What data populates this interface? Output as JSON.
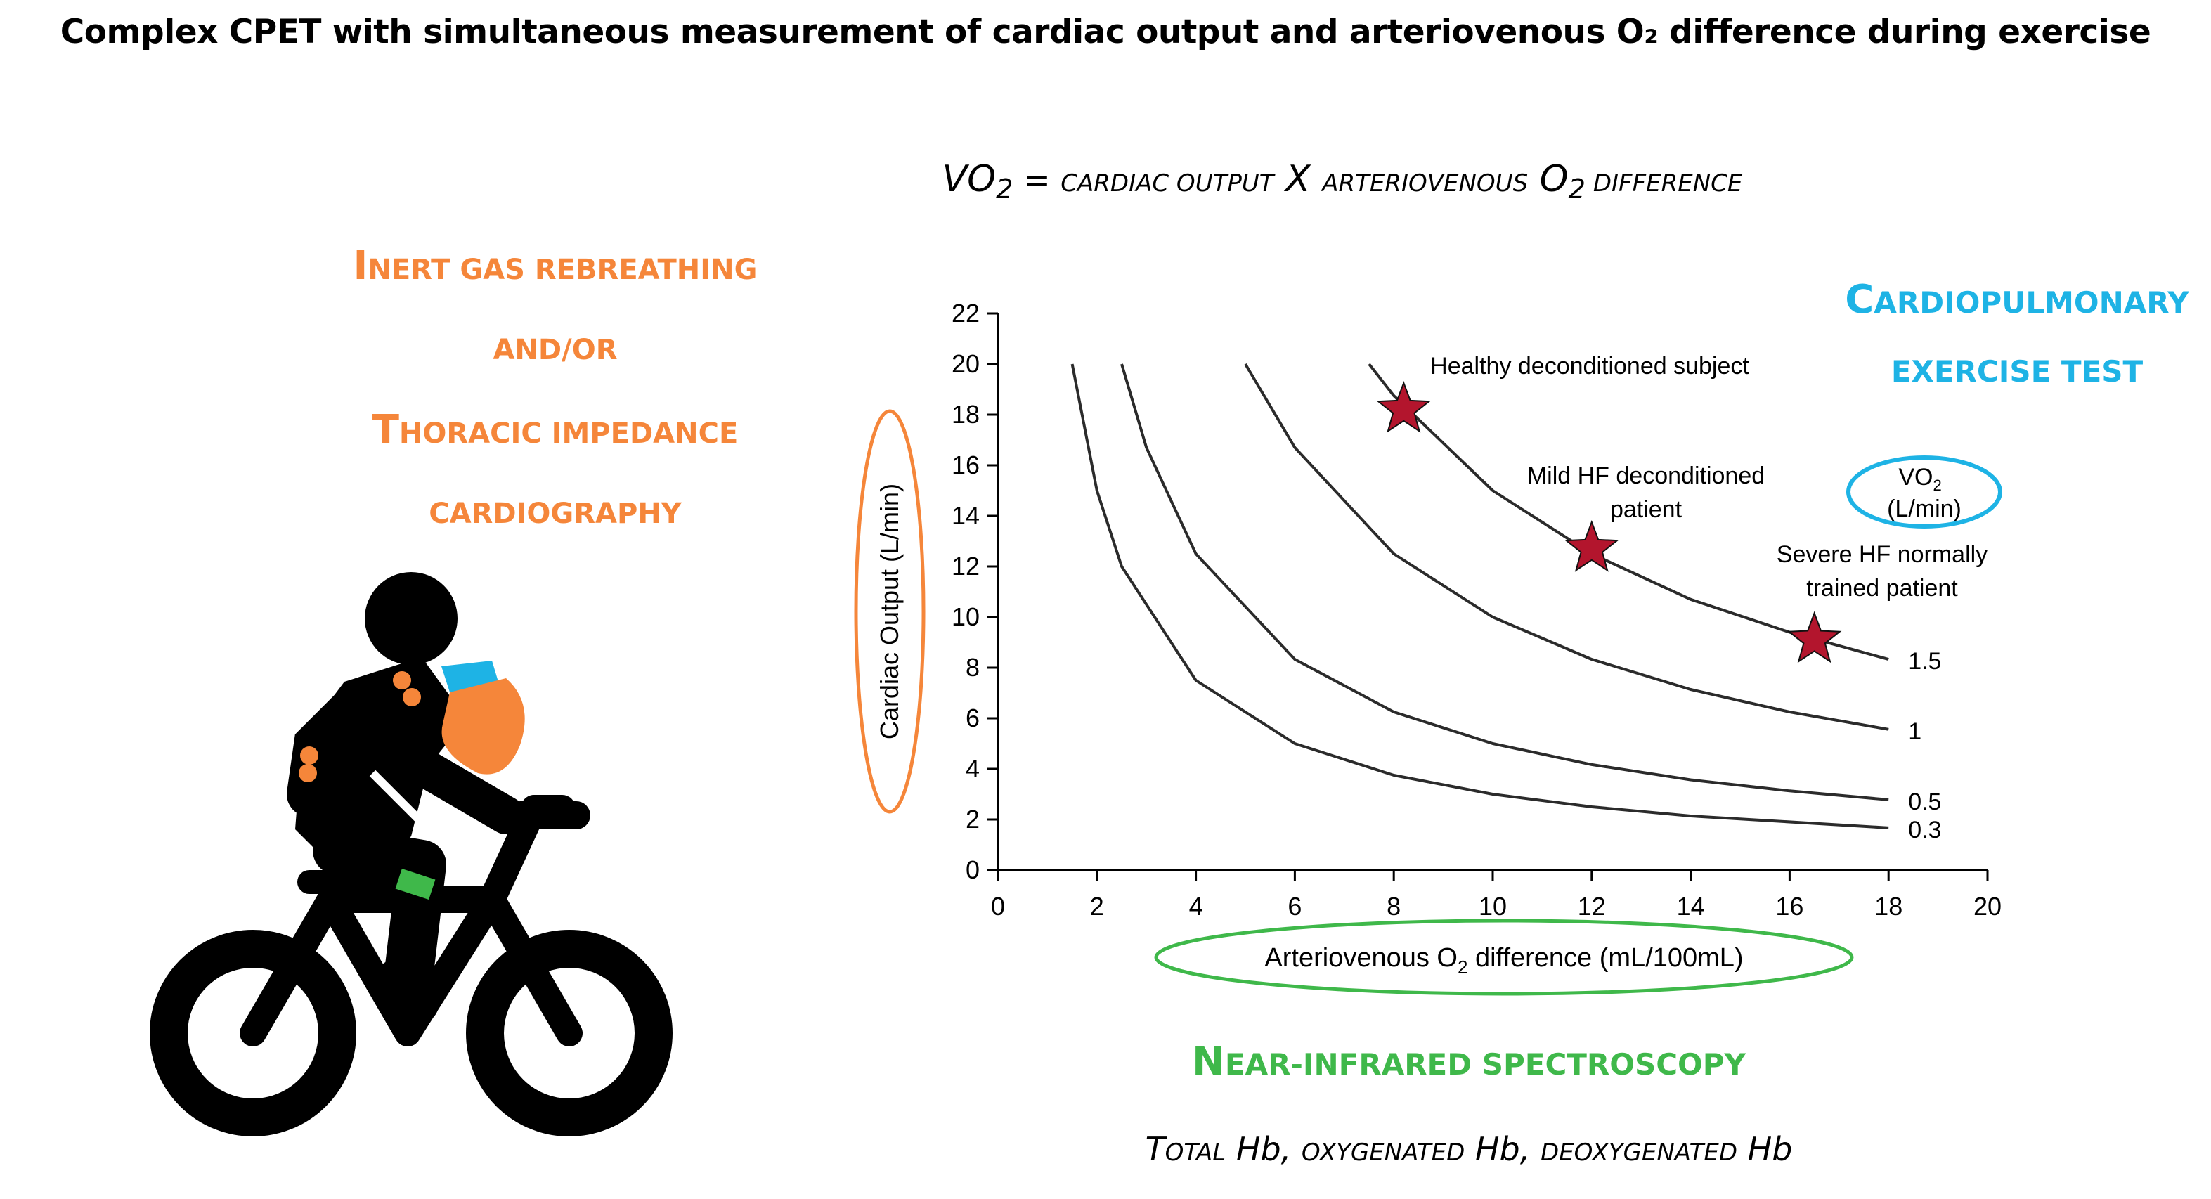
{
  "title": "Complex CPET with simultaneous measurement of cardiac output and arteriovenous O₂ difference during exercise",
  "formula": {
    "vo2": "VO",
    "vo2_sub": "2",
    "eq": " = ",
    "cardiac_output": "cardiac output",
    "times": " X ",
    "av_diff": "arteriovenous",
    "o2": " O",
    "o2_sub": "2",
    "difference": " difference"
  },
  "left_methods": {
    "line1_cap": "I",
    "line1_rest": "nert gas rebreathing",
    "line2": "and/or",
    "line3_cap": "T",
    "line3_rest": "horacic impedance",
    "line4": "cardiography"
  },
  "cpet_label": {
    "line1_cap": "C",
    "line1_rest": "ardiopulmonary",
    "line2": "exercise test"
  },
  "nirs_label": {
    "cap": "N",
    "rest": "ear-infrared spectroscopy"
  },
  "hb_label": {
    "t_cap": "T",
    "t_rest": "otal",
    "hb1": " Hb, ",
    "oxy": "oxygenated",
    "hb2": " Hb, ",
    "deoxy": "deoxygenated",
    "hb3": " Hb"
  },
  "chart_data": {
    "type": "line",
    "title": "",
    "xlabel": "Arteriovenous O2 difference (mL/100mL)",
    "xlabel_main": "Arteriovenous O",
    "xlabel_sub": "2",
    "xlabel_rest": " difference  (mL/100mL)",
    "ylabel": "Cardiac Output (L/min)",
    "xlim": [
      0,
      20
    ],
    "ylim": [
      0,
      22
    ],
    "x_ticks": [
      0,
      2,
      4,
      6,
      8,
      10,
      12,
      14,
      16,
      18,
      20
    ],
    "y_ticks": [
      0,
      2,
      4,
      6,
      8,
      10,
      12,
      14,
      16,
      18,
      20,
      22
    ],
    "vo2_legend_title": "VO",
    "vo2_legend_sub": "2",
    "vo2_legend_units": "(L/min)",
    "series": [
      {
        "name": "0.3",
        "points": [
          [
            1.5,
            20
          ],
          [
            2,
            15
          ],
          [
            2.5,
            12
          ],
          [
            4,
            7.5
          ],
          [
            6,
            5
          ],
          [
            8,
            3.75
          ],
          [
            10,
            3
          ],
          [
            12,
            2.5
          ],
          [
            14,
            2.14
          ],
          [
            18,
            1.67
          ]
        ]
      },
      {
        "name": "0.5",
        "points": [
          [
            2.5,
            20
          ],
          [
            3,
            16.7
          ],
          [
            4,
            12.5
          ],
          [
            6,
            8.33
          ],
          [
            8,
            6.25
          ],
          [
            10,
            5
          ],
          [
            12,
            4.17
          ],
          [
            14,
            3.57
          ],
          [
            16,
            3.13
          ],
          [
            18,
            2.78
          ]
        ]
      },
      {
        "name": "1",
        "points": [
          [
            5,
            20
          ],
          [
            6,
            16.7
          ],
          [
            8,
            12.5
          ],
          [
            10,
            10
          ],
          [
            12,
            8.33
          ],
          [
            14,
            7.14
          ],
          [
            16,
            6.25
          ],
          [
            18,
            5.56
          ]
        ]
      },
      {
        "name": "1.5",
        "points": [
          [
            7.5,
            20
          ],
          [
            8,
            18.75
          ],
          [
            10,
            15
          ],
          [
            12,
            12.5
          ],
          [
            14,
            10.7
          ],
          [
            16,
            9.4
          ],
          [
            18,
            8.33
          ]
        ]
      }
    ],
    "markers": [
      {
        "x": 8.2,
        "y": 18.2,
        "label": "Healthy deconditioned subject"
      },
      {
        "x": 12,
        "y": 12.7,
        "label": "Mild HF deconditioned patient",
        "label_lines": [
          "Mild HF deconditioned",
          "patient"
        ]
      },
      {
        "x": 16.5,
        "y": 9.1,
        "label": "Severe HF normally trained patient",
        "label_lines": [
          "Severe HF normally",
          "trained patient"
        ]
      }
    ]
  },
  "colors": {
    "orange": "#f5863a",
    "blue": "#1eb3e5",
    "green": "#3fb84a",
    "star": "#b3152d",
    "black": "#000000"
  }
}
